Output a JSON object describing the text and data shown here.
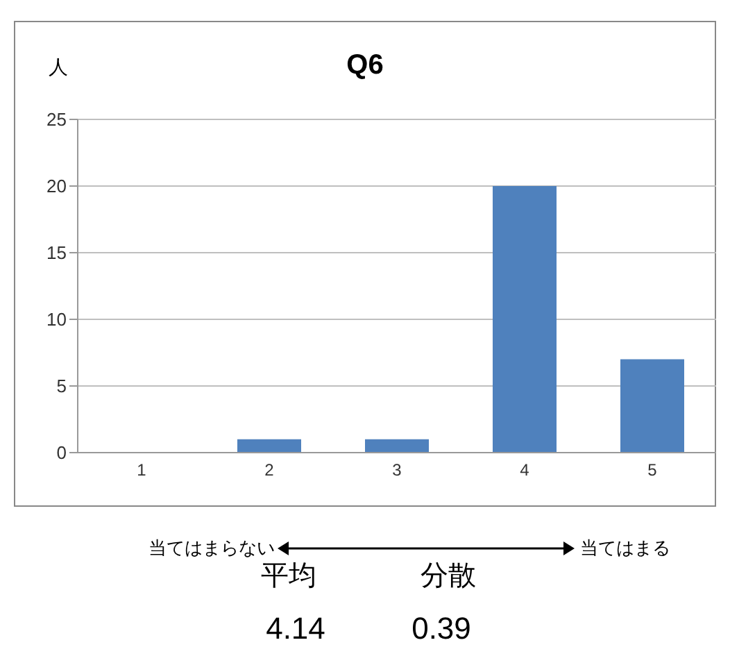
{
  "chart_data": {
    "type": "bar",
    "title": "Q6",
    "ylabel": "人",
    "categories": [
      "1",
      "2",
      "3",
      "4",
      "5"
    ],
    "values": [
      0,
      1,
      1,
      20,
      7
    ],
    "color": "#4f81bd",
    "ylim": [
      0,
      25
    ],
    "yticks": [
      0,
      5,
      10,
      15,
      20,
      25
    ],
    "grid": "y",
    "annotations": [
      "当てはまらない",
      "当てはまる",
      "平均",
      "分散",
      "4.14",
      "0.39"
    ]
  }
}
